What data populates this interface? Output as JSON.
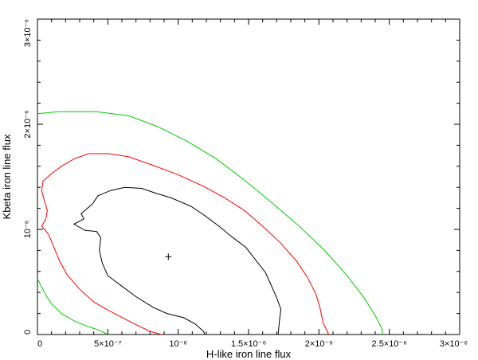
{
  "chart_data": {
    "type": "contour",
    "title": "",
    "xlabel": "H-like iron line flux",
    "ylabel": "Kbeta iron line flux",
    "xlim": [
      0,
      3e-06
    ],
    "ylim": [
      0,
      3e-06
    ],
    "grid": false,
    "legend": "none",
    "x_tick_labels": [
      "0",
      "5×10⁻⁷",
      "10⁻⁶",
      "1.5×10⁻⁶",
      "2×10⁻⁶",
      "2.5×10⁻⁶",
      "3×10⁻⁶"
    ],
    "x_tick_values": [
      0,
      5e-07,
      1e-06,
      1.5e-06,
      2e-06,
      2.5e-06,
      3e-06
    ],
    "y_tick_labels": [
      "0",
      "10⁻⁶",
      "2×10⁻⁶",
      "3×10⁻⁶"
    ],
    "y_tick_values": [
      0,
      1e-06,
      2e-06,
      3e-06
    ],
    "best_fit": {
      "x": 9.3e-07,
      "y": 7.4e-07
    },
    "series": [
      {
        "color": "#000000",
        "points": [
          [
            1.19e-06,
            0
          ],
          [
            1.18e-06,
            3e-08
          ],
          [
            1.12e-06,
            1e-07
          ],
          [
            1.04e-06,
            1.6e-07
          ],
          [
            9.2e-07,
            2e-07
          ],
          [
            8.2e-07,
            2.6e-07
          ],
          [
            7e-07,
            3.6e-07
          ],
          [
            6e-07,
            4.6e-07
          ],
          [
            5e-07,
            5.6e-07
          ],
          [
            4.6e-07,
            6.8e-07
          ],
          [
            4.4e-07,
            8e-07
          ],
          [
            4.5e-07,
            9.2e-07
          ],
          [
            4.2e-07,
            9.8e-07
          ],
          [
            3.4e-07,
            9.9e-07
          ],
          [
            2.6e-07,
            1.05e-06
          ],
          [
            3.3e-07,
            1.1e-06
          ],
          [
            3.1e-07,
            1.15e-06
          ],
          [
            3.9e-07,
            1.24e-06
          ],
          [
            4.3e-07,
            1.32e-06
          ],
          [
            5.2e-07,
            1.37e-06
          ],
          [
            6.2e-07,
            1.4e-06
          ],
          [
            7.4e-07,
            1.39e-06
          ],
          [
            8.5e-07,
            1.34e-06
          ],
          [
            9.5e-07,
            1.3e-06
          ],
          [
            1.09e-06,
            1.22e-06
          ],
          [
            1.19e-06,
            1.13e-06
          ],
          [
            1.29e-06,
            1.03e-06
          ],
          [
            1.38e-06,
            9.3e-07
          ],
          [
            1.48e-06,
            8.3e-07
          ],
          [
            1.55e-06,
            7.1e-07
          ],
          [
            1.62e-06,
            5.9e-07
          ],
          [
            1.66e-06,
            4.7e-07
          ],
          [
            1.7e-06,
            3.5e-07
          ],
          [
            1.73e-06,
            2.4e-07
          ],
          [
            1.72e-06,
            1.4e-07
          ],
          [
            1.71e-06,
            0
          ]
        ]
      },
      {
        "color": "#ff0000",
        "points": [
          [
            8.8e-07,
            0
          ],
          [
            8e-07,
            3e-08
          ],
          [
            6.9e-07,
            1e-07
          ],
          [
            5.9e-07,
            1.7e-07
          ],
          [
            4.9e-07,
            2.4e-07
          ],
          [
            4e-07,
            3.1e-07
          ],
          [
            3e-07,
            4.3e-07
          ],
          [
            2.1e-07,
            5.7e-07
          ],
          [
            1.6e-07,
            6.9e-07
          ],
          [
            1.2e-07,
            8.2e-07
          ],
          [
            8e-08,
            9.5e-07
          ],
          [
            5e-08,
            1e-06
          ],
          [
            3e-08,
            1.03e-06
          ],
          [
            6e-08,
            1.1e-06
          ],
          [
            7e-08,
            1.18e-06
          ],
          [
            5e-08,
            1.27e-06
          ],
          [
            3e-08,
            1.37e-06
          ],
          [
            4e-08,
            1.46e-06
          ],
          [
            1e-07,
            1.53e-06
          ],
          [
            1.7e-07,
            1.6e-06
          ],
          [
            2.6e-07,
            1.67e-06
          ],
          [
            3.6e-07,
            1.72e-06
          ],
          [
            5.1e-07,
            1.72e-06
          ],
          [
            6.5e-07,
            1.69e-06
          ],
          [
            8.2e-07,
            1.61e-06
          ],
          [
            1e-06,
            1.52e-06
          ],
          [
            1.18e-06,
            1.41e-06
          ],
          [
            1.33e-06,
            1.3e-06
          ],
          [
            1.47e-06,
            1.18e-06
          ],
          [
            1.6e-06,
            1.03e-06
          ],
          [
            1.72e-06,
            8.8e-07
          ],
          [
            1.84e-06,
            7e-07
          ],
          [
            1.92e-06,
            5.4e-07
          ],
          [
            1.98e-06,
            3.8e-07
          ],
          [
            2.01e-06,
            2.4e-07
          ],
          [
            2.03e-06,
            1.1e-07
          ],
          [
            2.07e-06,
            0
          ]
        ]
      },
      {
        "color": "#00cc00",
        "points": [
          [
            5e-07,
            0
          ],
          [
            4.4e-07,
            4e-08
          ],
          [
            3.5e-07,
            8e-08
          ],
          [
            2.6e-07,
            1.3e-07
          ],
          [
            1.7e-07,
            2e-07
          ],
          [
            1e-07,
            2.9e-07
          ],
          [
            5e-08,
            4e-07
          ],
          [
            0,
            5.3e-07
          ]
        ]
      },
      {
        "color": "#00cc00",
        "points": [
          [
            0,
            2.1e-06
          ],
          [
            1.5e-07,
            2.12e-06
          ],
          [
            4.2e-07,
            2.12e-06
          ],
          [
            6.5e-07,
            2.08e-06
          ],
          [
            8.5e-07,
            1.98e-06
          ],
          [
            1.06e-06,
            1.84e-06
          ],
          [
            1.26e-06,
            1.68e-06
          ],
          [
            1.46e-06,
            1.48e-06
          ],
          [
            1.66e-06,
            1.26e-06
          ],
          [
            1.86e-06,
            1.03e-06
          ],
          [
            2.04e-06,
            8e-07
          ],
          [
            2.2e-06,
            5.6e-07
          ],
          [
            2.32e-06,
            3.5e-07
          ],
          [
            2.4e-06,
            1.8e-07
          ],
          [
            2.45e-06,
            5e-08
          ],
          [
            2.45e-06,
            0
          ]
        ]
      }
    ]
  }
}
